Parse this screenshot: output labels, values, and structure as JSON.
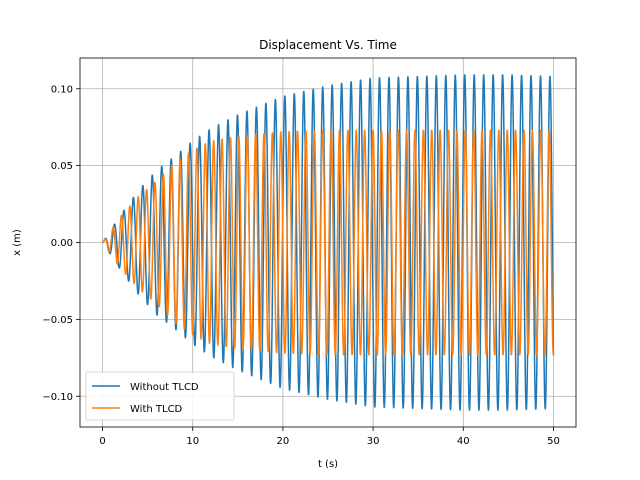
{
  "chart_data": {
    "type": "line",
    "title": "Displacement Vs. Time",
    "xlabel": "t (s)",
    "ylabel": "x (m)",
    "xlim": [
      -2.5,
      52.5
    ],
    "ylim": [
      -0.12,
      0.12
    ],
    "xticks": [
      0,
      10,
      20,
      30,
      40,
      50
    ],
    "xtick_labels": [
      "0",
      "10",
      "20",
      "30",
      "40",
      "50"
    ],
    "yticks": [
      -0.1,
      -0.05,
      0.0,
      0.05,
      0.1
    ],
    "ytick_labels": [
      "−0.10",
      "−0.05",
      "0.00",
      "0.05",
      "0.10"
    ],
    "grid": true,
    "legend_position": "lower-left",
    "series": [
      {
        "name": "Without TLCD",
        "color": "#1f77b4",
        "t_start": 0,
        "t_end": 50,
        "period_s": 1.05,
        "amplitude_envelope": {
          "t": [
            0,
            2,
            4,
            6,
            8,
            10,
            12,
            15,
            20,
            25,
            30,
            35,
            40,
            45,
            50
          ],
          "amp": [
            0.0,
            0.018,
            0.034,
            0.047,
            0.056,
            0.066,
            0.074,
            0.083,
            0.095,
            0.102,
            0.107,
            0.108,
            0.109,
            0.109,
            0.108
          ]
        }
      },
      {
        "name": "With TLCD",
        "color": "#ff7f0e",
        "t_start": 0,
        "t_end": 50,
        "period_s": 0.93,
        "amplitude_envelope": {
          "t": [
            0,
            2,
            4,
            6,
            8,
            10,
            12,
            15,
            20,
            25,
            30,
            35,
            40,
            45,
            50
          ],
          "amp": [
            0.0,
            0.017,
            0.03,
            0.04,
            0.052,
            0.06,
            0.066,
            0.069,
            0.072,
            0.073,
            0.073,
            0.073,
            0.073,
            0.073,
            0.073
          ]
        }
      }
    ]
  }
}
